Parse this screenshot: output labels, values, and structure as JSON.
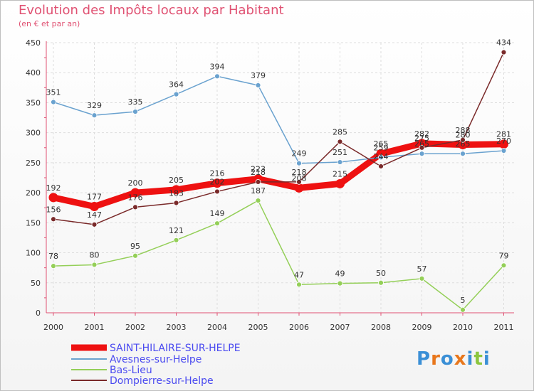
{
  "chart_data": {
    "type": "line",
    "title": "Evolution des Impôts locaux par Habitant",
    "subtitle": "(en € et par an)",
    "xlabel": "",
    "ylabel": "",
    "ylim": [
      0,
      450
    ],
    "yticks": [
      0,
      50,
      100,
      150,
      200,
      250,
      300,
      350,
      400,
      450
    ],
    "categories": [
      "2000",
      "2001",
      "2002",
      "2003",
      "2004",
      "2005",
      "2006",
      "2007",
      "2008",
      "2009",
      "2010",
      "2011"
    ],
    "legend_position": "bottom-left",
    "series": [
      {
        "name": "SAINT-HILAIRE-SUR-HELPE",
        "color": "#ee1111",
        "values": [
          192,
          177,
          200,
          205,
          216,
          223,
          208,
          215,
          265,
          282,
          280,
          281
        ],
        "labels": [
          "192",
          "177",
          "200",
          "205",
          "216",
          "223",
          "208",
          "215",
          "265",
          "282",
          "280",
          "281"
        ]
      },
      {
        "name": "Avesnes-sur-Helpe",
        "color": "#6aa2cf",
        "values": [
          351,
          329,
          335,
          364,
          394,
          379,
          249,
          251,
          259,
          265,
          265,
          270
        ],
        "labels": [
          "351",
          "329",
          "335",
          "364",
          "394",
          "379",
          "249",
          "251",
          "259",
          "265",
          "265",
          "270"
        ]
      },
      {
        "name": "Bas-Lieu",
        "color": "#94cf58",
        "values": [
          78,
          80,
          95,
          121,
          149,
          187,
          47,
          49,
          50,
          57,
          5,
          79
        ],
        "labels": [
          "78",
          "80",
          "95",
          "121",
          "149",
          "187",
          "47",
          "49",
          "50",
          "57",
          "5",
          "79"
        ]
      },
      {
        "name": "Dompierre-sur-Helpe",
        "color": "#7a2a2a",
        "values": [
          156,
          147,
          176,
          183,
          202,
          218,
          218,
          285,
          244,
          275,
          288,
          434
        ],
        "labels": [
          "156",
          "147",
          "176",
          "183",
          "202",
          "218",
          "218",
          "285",
          "244",
          "275",
          "288",
          "434"
        ]
      }
    ]
  },
  "logo": {
    "text": "Proxiti",
    "colors": [
      "#3a8fd6",
      "#e8771c",
      "#3a8fd6",
      "#e8771c",
      "#3a8fd6",
      "#8cc63f",
      "#3a8fd6"
    ]
  }
}
